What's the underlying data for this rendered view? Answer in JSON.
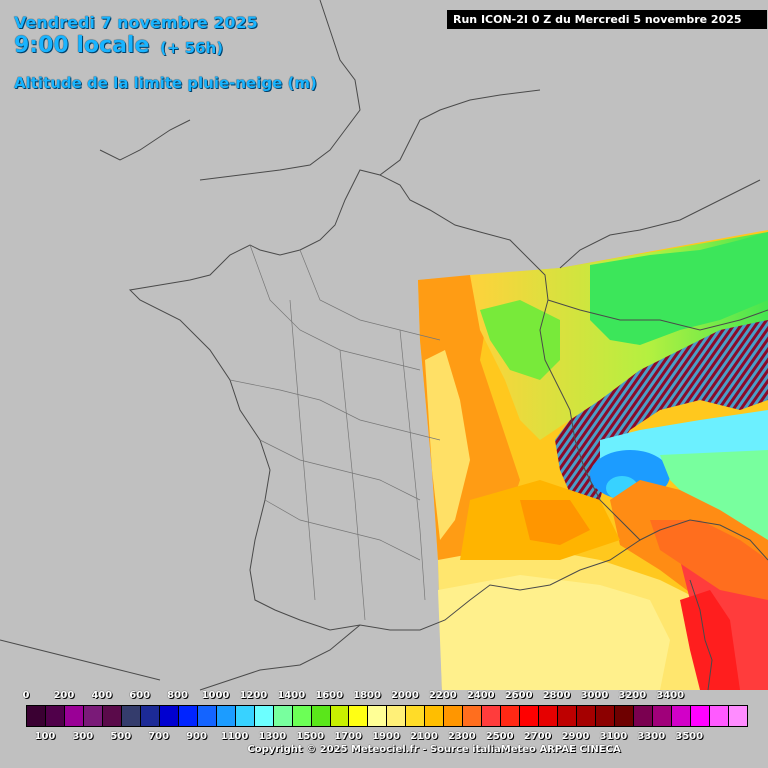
{
  "header": {
    "date": "Vendredi 7 novembre 2025",
    "time": "9:00 locale",
    "lead": "(+ 56h)",
    "parameter": "Altitude de la limite pluie-neige (m)",
    "run": "Run ICON-2I 0 Z du Mercredi 5 novembre 2025"
  },
  "legend": {
    "top_labels": [
      "0",
      "200",
      "400",
      "600",
      "800",
      "1000",
      "1200",
      "1400",
      "1600",
      "1800",
      "2000",
      "2200",
      "2400",
      "2600",
      "2800",
      "3000",
      "3200",
      "3400"
    ],
    "bottom_labels": [
      "100",
      "300",
      "500",
      "700",
      "900",
      "1100",
      "1300",
      "1500",
      "1700",
      "1900",
      "2100",
      "2300",
      "2500",
      "2700",
      "2900",
      "3100",
      "3300",
      "3500"
    ],
    "colors": [
      "#3a0032",
      "#50004a",
      "#9a0096",
      "#7a1a78",
      "#5a0a4a",
      "#343c6c",
      "#1c2a96",
      "#0000d0",
      "#0024ff",
      "#1464ff",
      "#1c9cff",
      "#38d2ff",
      "#6cffff",
      "#78ff9e",
      "#6cff56",
      "#5ae61a",
      "#c8f000",
      "#ffff14",
      "#ffff96",
      "#fff078",
      "#ffdc28",
      "#ffbe00",
      "#ff9600",
      "#ff6e1e",
      "#ff3c3c",
      "#ff2814",
      "#ff0000",
      "#e60000",
      "#be0000",
      "#a50000",
      "#8c0000",
      "#6e0000",
      "#7a0050",
      "#a0007a",
      "#d200c8",
      "#ff00ff",
      "#ff5aff",
      "#ff8cff"
    ]
  },
  "copyright": "Copyright © 2025 Meteociel.fr - Source italiaMeteo ARPAE CINECA"
}
